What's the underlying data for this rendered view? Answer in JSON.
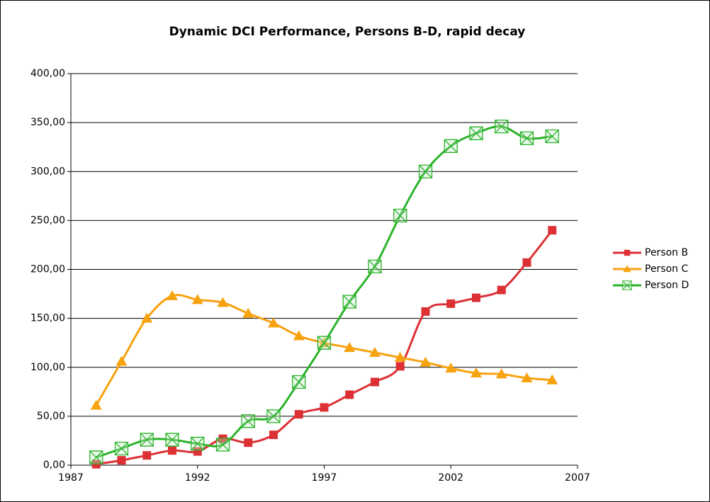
{
  "chart_data": {
    "type": "line",
    "title": "Dynamic DCI Performance, Persons B-D, rapid decay",
    "smooth": true,
    "grid": true,
    "legend": "right",
    "x": [
      1988,
      1989,
      1990,
      1991,
      1992,
      1993,
      1994,
      1995,
      1996,
      1997,
      1998,
      1999,
      2000,
      2001,
      2002,
      2003,
      2004,
      2005,
      2006
    ],
    "series": [
      {
        "name": "Person B",
        "color": "#dc3035",
        "marker": "square",
        "values": [
          1,
          5,
          10,
          15,
          14,
          27,
          23,
          31,
          52,
          59,
          72,
          85,
          101,
          157,
          165,
          171,
          179,
          207,
          240
        ]
      },
      {
        "name": "Person C",
        "color": "#f7a20f",
        "marker": "triangle",
        "values": [
          61,
          106,
          150,
          173,
          169,
          166,
          155,
          145,
          132,
          125,
          120,
          115,
          110,
          105,
          99,
          94,
          93,
          89,
          87
        ]
      },
      {
        "name": "Person D",
        "color": "#2bb32b",
        "marker": "x-box",
        "values": [
          8,
          17,
          26,
          26,
          22,
          21,
          45,
          50,
          85,
          125,
          167,
          203,
          255,
          300,
          326,
          339,
          346,
          334,
          336
        ]
      }
    ],
    "xlim": [
      1987,
      2007
    ],
    "xticks": [
      1987,
      1992,
      1997,
      2002,
      2007
    ],
    "ylim": [
      0,
      400
    ],
    "yticks": [
      {
        "value": 0,
        "label": "0,00"
      },
      {
        "value": 50,
        "label": "50,00"
      },
      {
        "value": 100,
        "label": "100,00"
      },
      {
        "value": 150,
        "label": "150,00"
      },
      {
        "value": 200,
        "label": "200,00"
      },
      {
        "value": 250,
        "label": "250,00"
      },
      {
        "value": 300,
        "label": "300,00"
      },
      {
        "value": 350,
        "label": "350,00"
      },
      {
        "value": 400,
        "label": "400,00"
      }
    ]
  }
}
